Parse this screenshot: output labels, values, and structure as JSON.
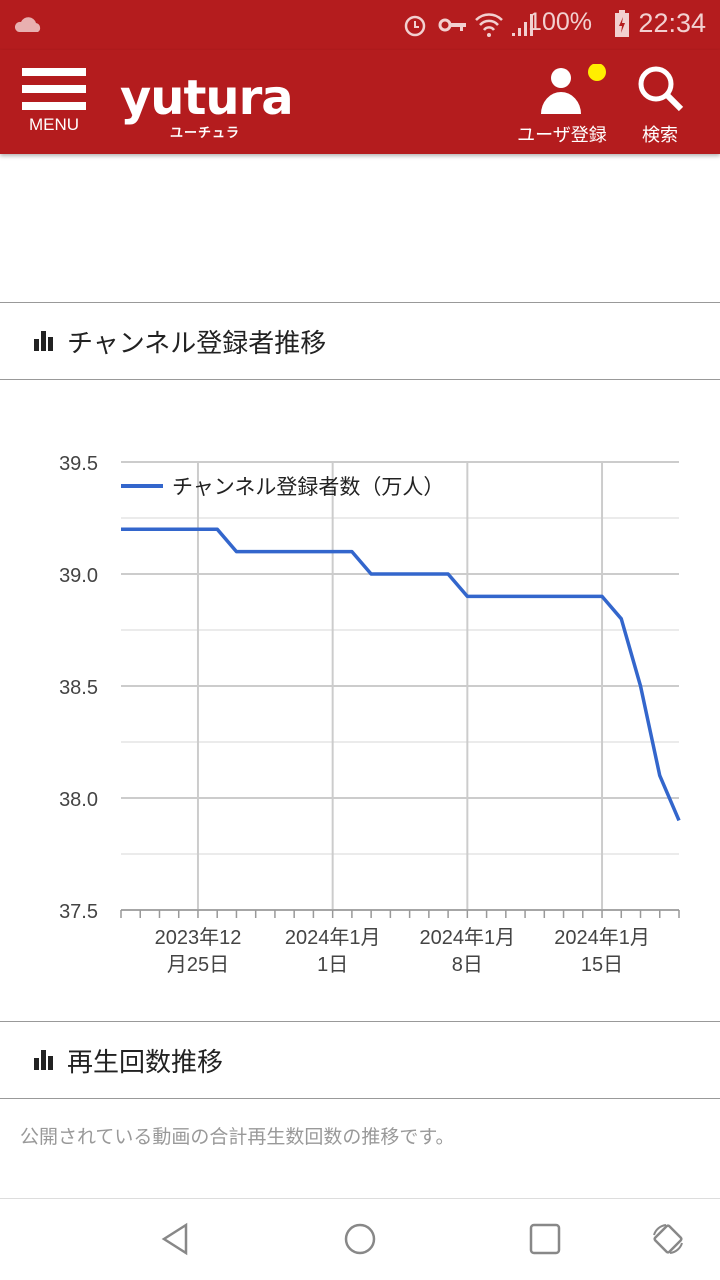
{
  "status_bar": {
    "battery": "100%",
    "time": "22:34",
    "icons": [
      "cloud-icon",
      "alarm-icon",
      "vpn-key-icon",
      "wifi-icon",
      "signal-icon",
      "battery-charging-icon"
    ]
  },
  "header": {
    "menu_label": "MENU",
    "logo": "yutura",
    "logo_sub": "ユーチュラ",
    "user_register": "ユーザ登録",
    "search": "検索",
    "accent": "#b41c1e",
    "notification_dot": "#ffee00"
  },
  "section1": {
    "title": "チャンネル登録者推移"
  },
  "section2": {
    "title": "再生回数推移",
    "description": "公開されている動画の合計再生数回数の推移です。"
  },
  "chart_data": {
    "type": "line",
    "title": "",
    "legend_position": "top-left",
    "ylim": [
      37.5,
      39.5
    ],
    "yticks": [
      "39.5",
      "39.0",
      "38.5",
      "38.0",
      "37.5"
    ],
    "xtick_labels": [
      [
        "2023年12",
        "月25日"
      ],
      [
        "2024年1月",
        "1日"
      ],
      [
        "2024年1月",
        "8日"
      ],
      [
        "2024年1月",
        "15日"
      ]
    ],
    "grid": true,
    "series": [
      {
        "name": "チャンネル登録者数（万人）",
        "color": "#3366cc",
        "x": [
          "2023-12-21",
          "2023-12-22",
          "2023-12-23",
          "2023-12-24",
          "2023-12-25",
          "2023-12-26",
          "2023-12-27",
          "2023-12-28",
          "2023-12-29",
          "2023-12-30",
          "2023-12-31",
          "2024-01-01",
          "2024-01-02",
          "2024-01-03",
          "2024-01-04",
          "2024-01-05",
          "2024-01-06",
          "2024-01-07",
          "2024-01-08",
          "2024-01-09",
          "2024-01-10",
          "2024-01-11",
          "2024-01-12",
          "2024-01-13",
          "2024-01-14",
          "2024-01-15",
          "2024-01-16",
          "2024-01-17",
          "2024-01-18",
          "2024-01-19"
        ],
        "values": [
          39.2,
          39.2,
          39.2,
          39.2,
          39.2,
          39.2,
          39.1,
          39.1,
          39.1,
          39.1,
          39.1,
          39.1,
          39.1,
          39.0,
          39.0,
          39.0,
          39.0,
          39.0,
          38.9,
          38.9,
          38.9,
          38.9,
          38.9,
          38.9,
          38.9,
          38.9,
          38.8,
          38.5,
          38.1,
          37.9
        ]
      }
    ]
  }
}
